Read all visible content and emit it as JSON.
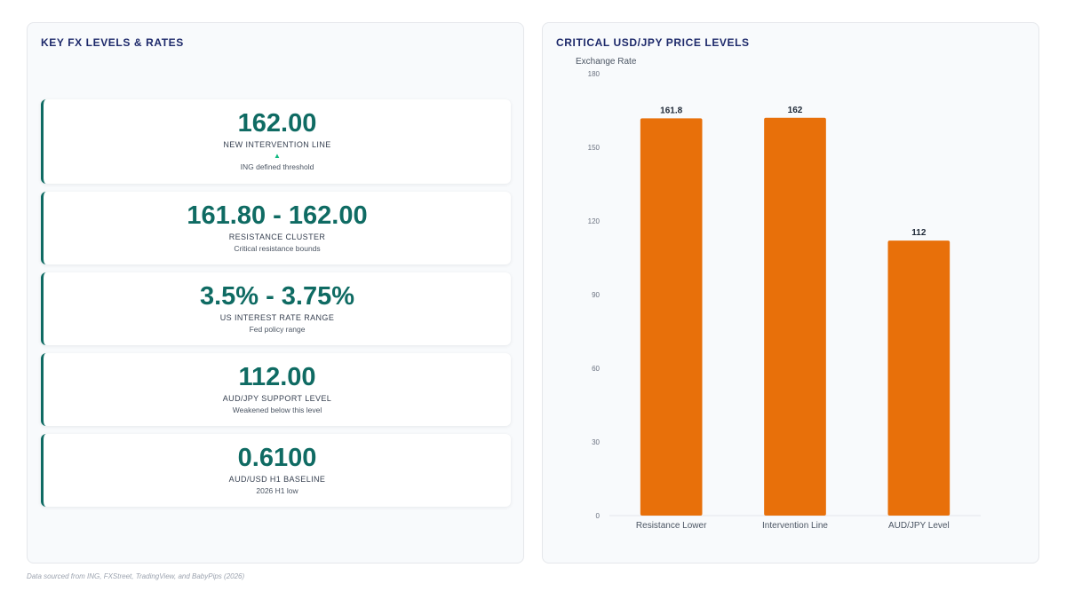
{
  "left_panel": {
    "title": "KEY FX LEVELS & RATES",
    "cards": [
      {
        "value": "162.00",
        "label": "NEW INTERVENTION LINE",
        "arrow": "▲",
        "desc": "ING defined threshold"
      },
      {
        "value": "161.80 - 162.00",
        "label": "RESISTANCE CLUSTER",
        "desc": "Critical resistance bounds"
      },
      {
        "value": "3.5% - 3.75%",
        "label": "US INTEREST RATE RANGE",
        "desc": "Fed policy range"
      },
      {
        "value": "112.00",
        "label": "AUD/JPY SUPPORT LEVEL",
        "desc": "Weakened below this level"
      },
      {
        "value": "0.6100",
        "label": "AUD/USD H1 BASELINE",
        "desc": "2026 H1 low"
      }
    ]
  },
  "right_panel": {
    "title": "CRITICAL USD/JPY PRICE LEVELS"
  },
  "chart_data": {
    "type": "bar",
    "title": "CRITICAL USD/JPY PRICE LEVELS",
    "ylabel": "Exchange Rate",
    "xlabel": "",
    "categories": [
      "Resistance Lower",
      "Intervention Line",
      "AUD/JPY Level"
    ],
    "values": [
      161.8,
      162,
      112
    ],
    "value_labels": [
      "161.8",
      "162",
      "112"
    ],
    "ylim": [
      0,
      180
    ],
    "yticks": [
      0,
      30,
      60,
      90,
      120,
      150,
      180
    ],
    "grid": false,
    "legend": "none",
    "bar_color": "#e8700a"
  },
  "footer": "Data sourced from ING, FXStreet, TradingView, and BabyPips (2026)",
  "colors": {
    "accent": "#0f6b63",
    "title": "#1e2a6b",
    "bar": "#e8700a",
    "arrow": "#10b981"
  }
}
